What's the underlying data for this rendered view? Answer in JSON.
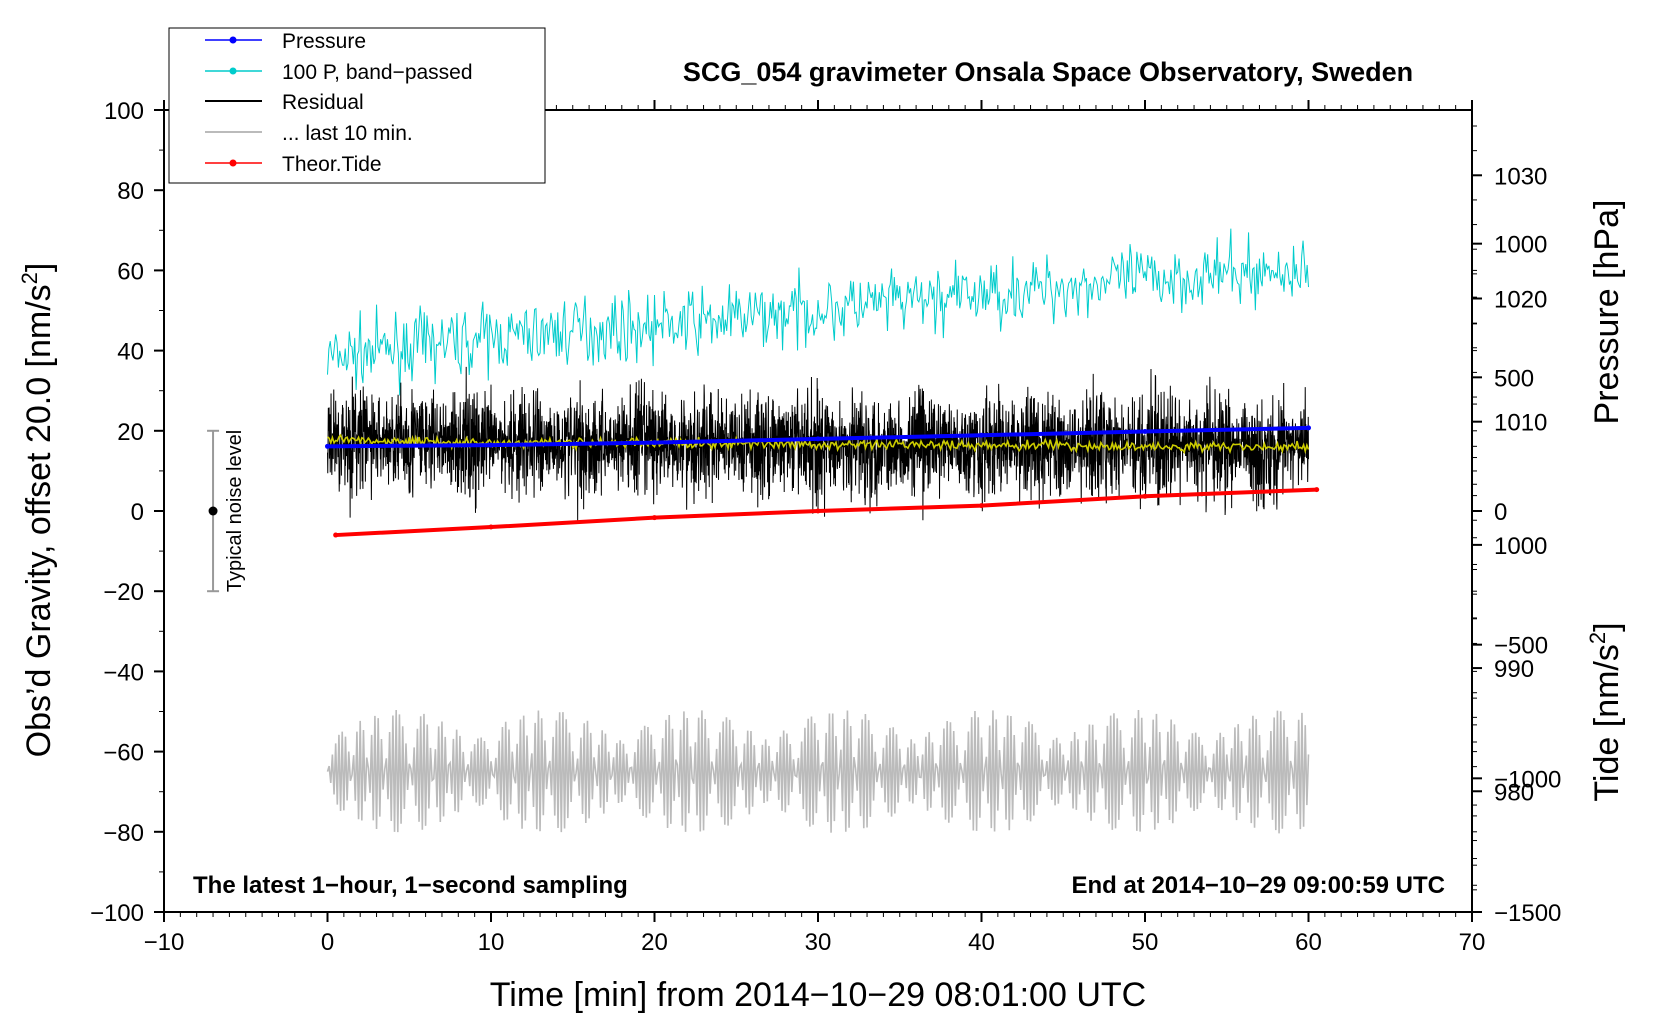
{
  "chart_data": {
    "type": "line",
    "title": "SCG_054 gravimeter Onsala Space Observatory, Sweden",
    "xlabel": "Time [min] from 2014−10−29 08:01:00 UTC",
    "ylabel_left_main": "Obs’d Gravity, offset 20.0 [nm/s",
    "ylabel_left_sup": "2",
    "ylabel_left_close": "]",
    "ylabel_right_pressure": "Pressure [hPa]",
    "ylabel_right_tide_main": "Tide [nm/s",
    "ylabel_right_tide_sup": "2",
    "ylabel_right_tide_close": "]",
    "xlim": [
      -10,
      70
    ],
    "ylim": [
      -100,
      100
    ],
    "pressure_lim": [
      970.2,
      1035.3
    ],
    "tide_lim": [
      -1500,
      1500
    ],
    "x_ticks": [
      -10,
      0,
      10,
      20,
      30,
      40,
      50,
      60,
      70
    ],
    "x_tick_labels": [
      "−10",
      "0",
      "10",
      "20",
      "30",
      "40",
      "50",
      "60",
      "70"
    ],
    "y_ticks": [
      -100,
      -80,
      -60,
      -40,
      -20,
      0,
      20,
      40,
      60,
      80,
      100
    ],
    "y_tick_labels": [
      "−100",
      "−80",
      "−60",
      "−40",
      "−20",
      "0",
      "20",
      "40",
      "60",
      "80",
      "100"
    ],
    "pressure_ticks": [
      980,
      990,
      1000,
      1010,
      1020,
      1030
    ],
    "pressure_tick_labels": [
      "980",
      "990",
      "1000",
      "1010",
      "1020",
      "1030"
    ],
    "tide_ticks": [
      -1500,
      -1000,
      -500,
      0,
      500,
      1000
    ],
    "tide_tick_labels": [
      "−1500",
      "−1000",
      "−500",
      "0",
      "500",
      "1000"
    ],
    "legend": [
      {
        "label": "Pressure",
        "color": "#0000ff",
        "marker": true
      },
      {
        "label": "100 P, band−passed",
        "color": "#00cccc",
        "marker": true
      },
      {
        "label": "Residual",
        "color": "#000000",
        "marker": false
      },
      {
        "label": "... last 10 min.",
        "color": "#bbbbbb",
        "marker": false
      },
      {
        "label": "Theor.Tide",
        "color": "#ff0000",
        "marker": true
      }
    ],
    "legend_position": "top-left",
    "notes": {
      "left": "The latest 1−hour, 1−second sampling",
      "right": "End at 2014−10−29 09:00:59 UTC"
    },
    "noise_level": {
      "label": "Typical noise level",
      "x": -7,
      "center": 0,
      "low": -20,
      "high": 20
    },
    "series": [
      {
        "name": "Pressure",
        "axis": "pressure",
        "color": "#0000ff",
        "x": [
          0,
          10,
          20,
          30,
          40,
          50,
          60
        ],
        "values": [
          1008.0,
          1008.1,
          1008.3,
          1008.6,
          1008.9,
          1009.2,
          1009.5
        ]
      },
      {
        "name": "100 P, band−passed",
        "axis": "left",
        "color": "#00cccc",
        "x": [
          0,
          5,
          10,
          15,
          20,
          25,
          30,
          35,
          40,
          45,
          50,
          55,
          60
        ],
        "values": [
          38,
          41,
          43,
          45,
          46,
          48,
          50,
          52,
          54,
          56,
          58,
          59,
          60
        ],
        "amplitude": 4
      },
      {
        "name": "Residual",
        "axis": "left",
        "color": "#000000",
        "x": [
          0,
          10,
          20,
          30,
          40,
          50,
          60
        ],
        "values": [
          18,
          17,
          17,
          16.5,
          16.5,
          16,
          16
        ],
        "amplitude": 14
      },
      {
        "name": "Residual mean",
        "axis": "left",
        "color": "#cccc00",
        "x": [
          0,
          10,
          20,
          30,
          40,
          50,
          60
        ],
        "values": [
          18,
          17,
          17,
          16.5,
          16.5,
          16,
          16
        ]
      },
      {
        "name": "... last 10 min.",
        "axis": "left",
        "color": "#bbbbbb",
        "x": [
          0,
          10,
          20,
          30,
          40,
          50,
          60
        ],
        "values": [
          -65,
          -65,
          -65,
          -65,
          -65,
          -65,
          -65
        ],
        "amplitude": 14
      },
      {
        "name": "Theor.Tide",
        "axis": "tide",
        "color": "#ff0000",
        "x": [
          0.5,
          10,
          20,
          30,
          40,
          50,
          60.5
        ],
        "values": [
          -90,
          -60,
          -25,
          0,
          20,
          55,
          80
        ]
      }
    ]
  }
}
